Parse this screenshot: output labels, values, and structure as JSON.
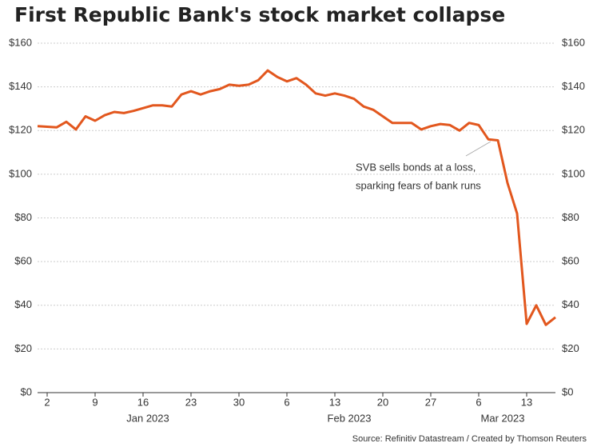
{
  "chart_data": {
    "type": "line",
    "title": "First Republic Bank's stock market collapse",
    "source": "Source: Refinitiv Datastream / Created by Thomson Reuters",
    "annotation": {
      "lines": [
        "SVB sells bonds at a loss,",
        "sparking fears of bank runs"
      ],
      "x": "2023-03-08"
    },
    "x": [
      "2022-12-30",
      "2023-01-03",
      "2023-01-04",
      "2023-01-05",
      "2023-01-06",
      "2023-01-09",
      "2023-01-10",
      "2023-01-11",
      "2023-01-12",
      "2023-01-13",
      "2023-01-17",
      "2023-01-18",
      "2023-01-19",
      "2023-01-20",
      "2023-01-23",
      "2023-01-24",
      "2023-01-25",
      "2023-01-26",
      "2023-01-27",
      "2023-01-30",
      "2023-01-31",
      "2023-02-01",
      "2023-02-02",
      "2023-02-03",
      "2023-02-06",
      "2023-02-07",
      "2023-02-08",
      "2023-02-09",
      "2023-02-10",
      "2023-02-13",
      "2023-02-14",
      "2023-02-15",
      "2023-02-16",
      "2023-02-17",
      "2023-02-21",
      "2023-02-22",
      "2023-02-23",
      "2023-02-24",
      "2023-02-27",
      "2023-02-28",
      "2023-03-01",
      "2023-03-02",
      "2023-03-03",
      "2023-03-06",
      "2023-03-07",
      "2023-03-08",
      "2023-03-09",
      "2023-03-10",
      "2023-03-13",
      "2023-03-14",
      "2023-03-15",
      "2023-03-16"
    ],
    "series": [
      {
        "name": "First Republic Bank",
        "color": "#e2571e",
        "values": [
          122,
          121.5,
          124,
          120.5,
          126.5,
          124.5,
          127,
          128.5,
          128,
          129,
          131.5,
          131.5,
          131,
          136.5,
          138,
          136.5,
          138,
          139,
          141,
          140.5,
          141,
          143,
          147.5,
          144.5,
          142.5,
          144,
          141,
          137,
          136,
          137,
          136,
          134.5,
          131,
          129.5,
          123.5,
          123.5,
          123.5,
          120.5,
          122,
          123,
          122.5,
          120,
          123.5,
          122.5,
          116,
          115.5,
          96,
          82,
          31.5,
          40,
          31,
          34.5
        ]
      }
    ],
    "xlim": [
      "2022-12-30",
      "2023-03-16"
    ],
    "xticks": [
      {
        "value": "2023-01-02",
        "label": "2"
      },
      {
        "value": "2023-01-09",
        "label": "9"
      },
      {
        "value": "2023-01-16",
        "label": "16"
      },
      {
        "value": "2023-01-23",
        "label": "23"
      },
      {
        "value": "2023-01-30",
        "label": "30"
      },
      {
        "value": "2023-02-06",
        "label": "6"
      },
      {
        "value": "2023-02-13",
        "label": "13"
      },
      {
        "value": "2023-02-20",
        "label": "20"
      },
      {
        "value": "2023-02-27",
        "label": "27"
      },
      {
        "value": "2023-03-06",
        "label": "6"
      },
      {
        "value": "2023-03-13",
        "label": "13"
      }
    ],
    "month_labels": [
      {
        "value": "2023-01",
        "label": "Jan 2023"
      },
      {
        "value": "2023-02",
        "label": "Feb 2023"
      },
      {
        "value": "2023-03",
        "label": "Mar 2023"
      }
    ],
    "ylim": [
      0,
      160
    ],
    "yticks": [
      {
        "value": 0,
        "label": "$0"
      },
      {
        "value": 20,
        "label": "$20"
      },
      {
        "value": 40,
        "label": "$40"
      },
      {
        "value": 60,
        "label": "$60"
      },
      {
        "value": 80,
        "label": "$80"
      },
      {
        "value": 100,
        "label": "$100"
      },
      {
        "value": 120,
        "label": "$120"
      },
      {
        "value": 140,
        "label": "$140"
      },
      {
        "value": 160,
        "label": "$160"
      }
    ],
    "grid": true
  }
}
